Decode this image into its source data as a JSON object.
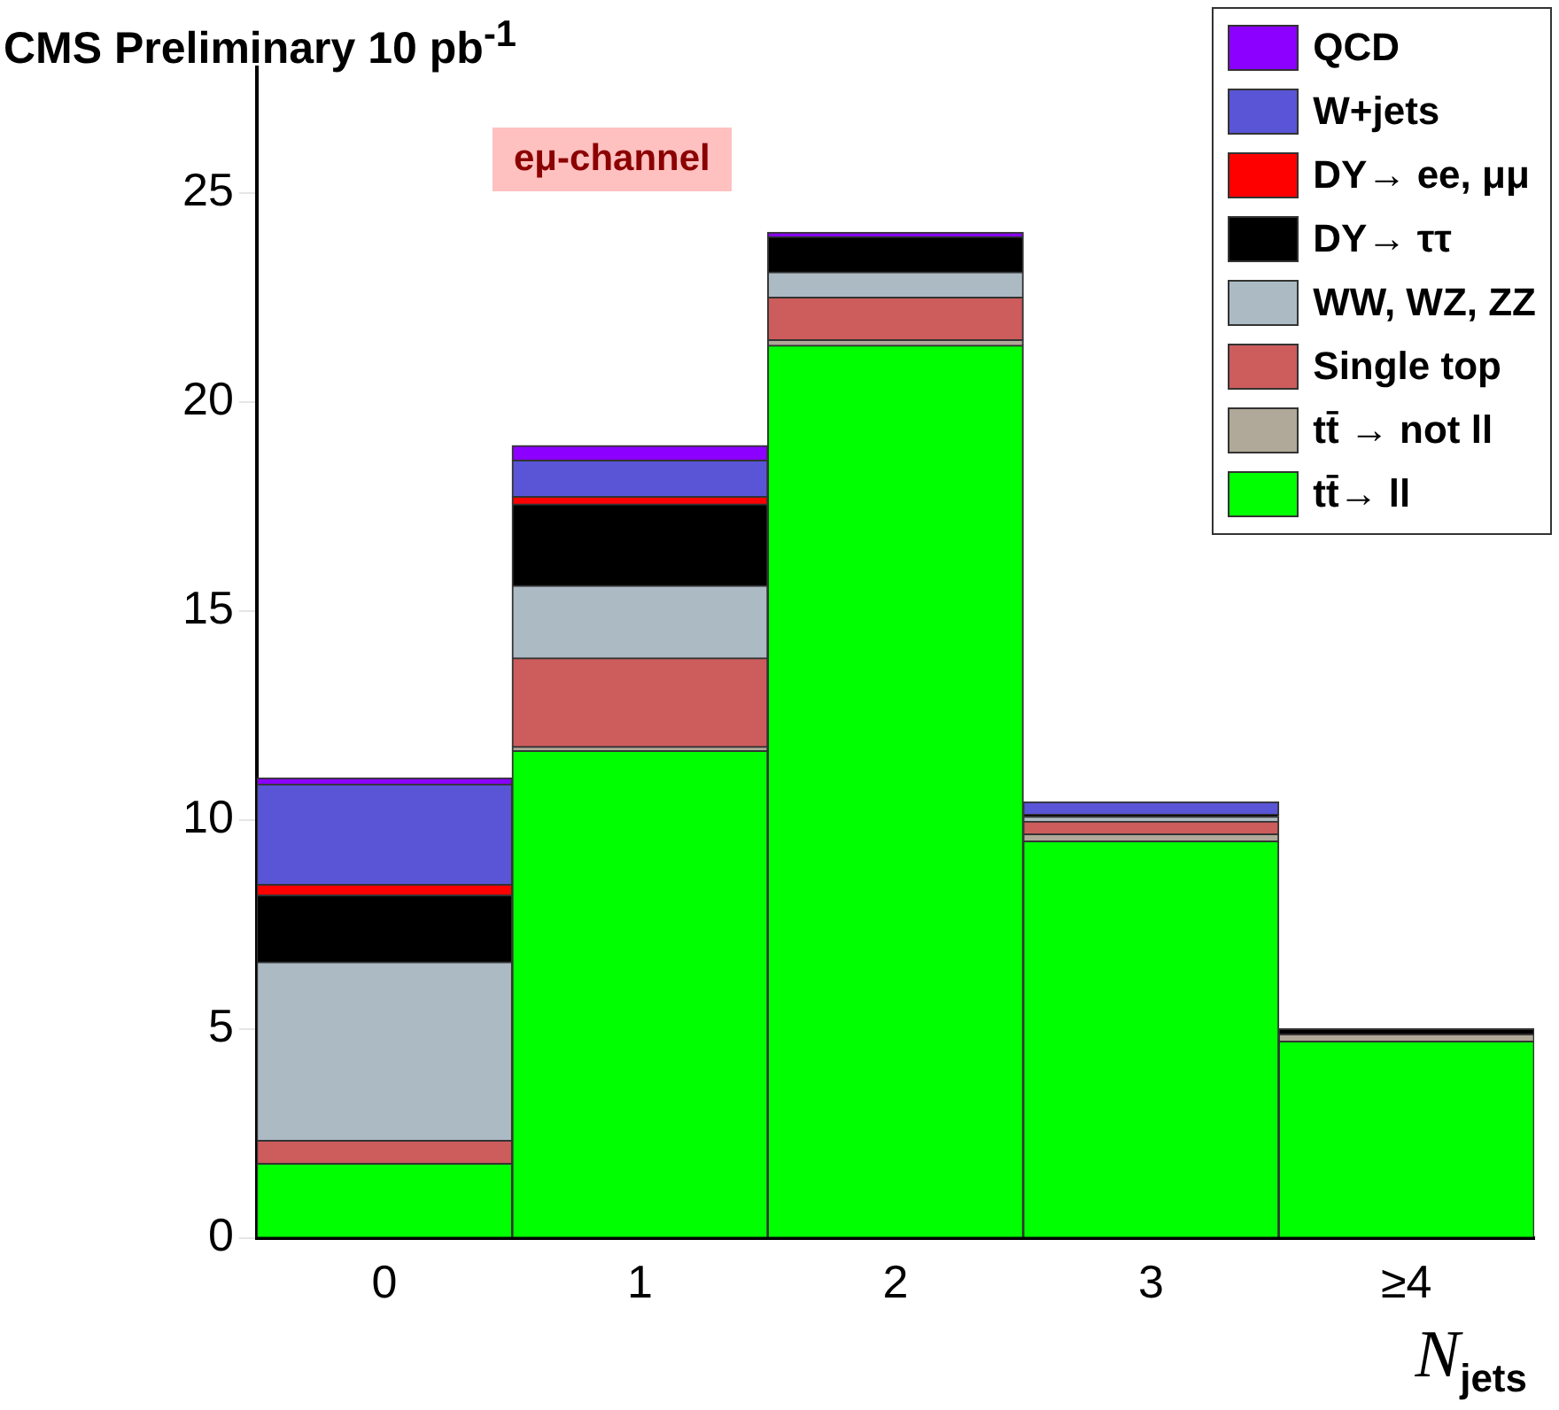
{
  "chart_data": {
    "type": "bar",
    "title": "CMS Preliminary  10 pb$^{-1}$",
    "xlabel": "N$_{jets}$",
    "categories": [
      "0",
      "1",
      "2",
      "3",
      "≥4"
    ],
    "stacked": true,
    "ylim": [
      0,
      28
    ],
    "yticks": [
      0,
      5,
      10,
      15,
      20,
      25
    ],
    "grid": false,
    "legend": "top right",
    "annotations": [
      "eμ-channel"
    ],
    "series": [
      {
        "name": "tt̄→ ll",
        "color": "#00ff00",
        "values": [
          1.78,
          11.65,
          21.35,
          9.49,
          4.7
        ]
      },
      {
        "name": "tt̄ → not ll",
        "color": "#b0a898",
        "values": [
          0,
          0.1,
          0.13,
          0.17,
          0.17
        ]
      },
      {
        "name": "Single top",
        "color": "#cd5c5c",
        "values": [
          0.55,
          2.12,
          1.02,
          0.3,
          0
        ]
      },
      {
        "name": "WW, WZ, ZZ",
        "color": "#acbac4",
        "values": [
          4.27,
          1.73,
          0.6,
          0.12,
          0
        ]
      },
      {
        "name": "DY→ ττ",
        "color": "#000000",
        "values": [
          1.6,
          1.95,
          0.85,
          0.05,
          0.13
        ]
      },
      {
        "name": "DY→ ee, μμ",
        "color": "#ff0000",
        "values": [
          0.25,
          0.18,
          0,
          0,
          0
        ]
      },
      {
        "name": "W+jets",
        "color": "#5a55d6",
        "values": [
          2.4,
          0.87,
          0,
          0.3,
          0
        ]
      },
      {
        "name": "QCD",
        "color": "#8b00ff",
        "values": [
          0.15,
          0.35,
          0.1,
          0,
          0
        ]
      }
    ]
  }
}
